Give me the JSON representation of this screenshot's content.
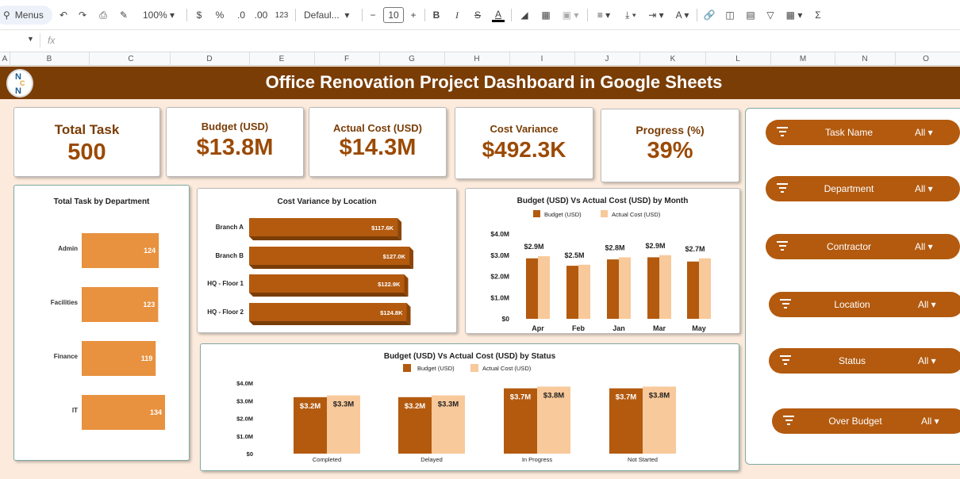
{
  "toolbar": {
    "menus": "Menus",
    "zoom": "100%",
    "currency": "$",
    "percent": "%",
    "dec_dec": ".0",
    "inc_dec": ".00",
    "format_123": "123",
    "font": "Defaul...",
    "font_size": "10",
    "bold": "B",
    "italic": "I",
    "strike": "S",
    "text_color": "A",
    "sum": "Σ"
  },
  "formula_bar": {
    "fx": "fx"
  },
  "columns": [
    "A",
    "B",
    "C",
    "D",
    "E",
    "F",
    "G",
    "H",
    "I",
    "J",
    "K",
    "L",
    "M",
    "N",
    "O"
  ],
  "title": "Office Renovation Project Dashboard in Google Sheets",
  "logo_letters": [
    "N",
    "C",
    "N"
  ],
  "kpis": [
    {
      "label": "Total Task",
      "value": "500"
    },
    {
      "label": "Budget (USD)",
      "value": "$13.8M"
    },
    {
      "label": "Actual Cost (USD)",
      "value": "$14.3M"
    },
    {
      "label": "Cost Variance",
      "value": "$492.3K"
    },
    {
      "label": "Progress (%)",
      "value": "39%"
    }
  ],
  "filters": [
    {
      "name": "Task Name",
      "value": "All"
    },
    {
      "name": "Department",
      "value": "All"
    },
    {
      "name": "Contractor",
      "value": "All"
    },
    {
      "name": "Location",
      "value": "All"
    },
    {
      "name": "Status",
      "value": "All"
    },
    {
      "name": "Over Budget",
      "value": "All"
    }
  ],
  "colors": {
    "banner": "#7a3d06",
    "dark_orange": "#b35a0f",
    "light_peach": "#f8c99a",
    "bar_orange": "#e8913f",
    "bg": "#fcebdd"
  },
  "chart_data": [
    {
      "type": "bar",
      "title": "Total Task by Department",
      "categories": [
        "Admin",
        "Facilities",
        "Finance",
        "IT"
      ],
      "values": [
        124,
        123,
        119,
        134
      ],
      "labels": [
        "124",
        "123",
        "119",
        "134"
      ],
      "color": "#e8913f"
    },
    {
      "type": "bar",
      "title": "Cost Variance by Location",
      "categories": [
        "Branch A",
        "Branch B",
        "HQ - Floor 1",
        "HQ - Floor 2"
      ],
      "values": [
        117.6,
        127.0,
        122.9,
        124.8
      ],
      "labels": [
        "$117.6K",
        "$127.0K",
        "$122.9K",
        "$124.8K"
      ],
      "color": "#b35a0f"
    },
    {
      "type": "bar",
      "title": "Budget (USD) Vs Actual Cost (USD) by Month",
      "categories": [
        "Apr",
        "Feb",
        "Jan",
        "Mar",
        "May"
      ],
      "ylim": [
        0,
        4
      ],
      "yticks": [
        "$0",
        "$1.0M",
        "$2.0M",
        "$3.0M",
        "$4.0M"
      ],
      "series": [
        {
          "name": "Budget (USD)",
          "values": [
            2.85,
            2.5,
            2.8,
            2.9,
            2.7
          ],
          "labels": [
            "$2.9M",
            "$2.5M",
            "$2.8M",
            "$2.9M",
            "$2.7M"
          ],
          "color": "#b35a0f"
        },
        {
          "name": "Actual Cost (USD)",
          "values": [
            2.95,
            2.55,
            2.9,
            3.0,
            2.85
          ],
          "color": "#f8c99a"
        }
      ]
    },
    {
      "type": "bar",
      "title": "Budget (USD) Vs Actual Cost (USD) by Status",
      "categories": [
        "Completed",
        "Delayed",
        "In Progress",
        "Not Started"
      ],
      "ylim": [
        0,
        4
      ],
      "yticks": [
        "$0",
        "$1.0M",
        "$2.0M",
        "$3.0M",
        "$4.0M"
      ],
      "series": [
        {
          "name": "Budget (USD)",
          "values": [
            3.2,
            3.2,
            3.7,
            3.7
          ],
          "labels": [
            "$3.2M",
            "$3.2M",
            "$3.7M",
            "$3.7M"
          ],
          "color": "#b35a0f"
        },
        {
          "name": "Actual Cost (USD)",
          "values": [
            3.3,
            3.3,
            3.8,
            3.8
          ],
          "labels": [
            "$3.3M",
            "$3.3M",
            "$3.8M",
            "$3.8M"
          ],
          "color": "#f8c99a"
        }
      ]
    }
  ]
}
